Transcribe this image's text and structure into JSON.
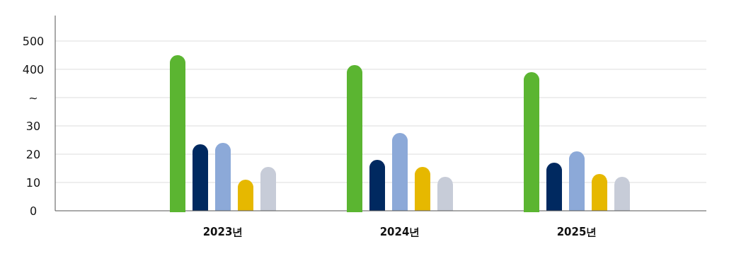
{
  "chart_data": [
    {
      "type": "bar",
      "categories": [
        null,
        null,
        null
      ],
      "series": [
        {
          "color": "#5bb531",
          "values": [
            450,
            415,
            390
          ]
        }
      ],
      "ylim": [
        275,
        590
      ],
      "yticks": [
        400,
        500
      ],
      "ref_lines": [
        {
          "axis": "y",
          "value": 300,
          "label": "~",
          "color": "#dddddd"
        }
      ],
      "grid": "y",
      "tick_labels": "y"
    },
    {
      "type": "bar",
      "categories": [
        "2023년",
        "2024년",
        "2025년"
      ],
      "series": [
        {
          "values": [
            null,
            null,
            null
          ]
        },
        {
          "color": "#002960",
          "values": [
            23.5,
            18,
            17
          ]
        },
        {
          "color": "#8ca9d8",
          "values": [
            24,
            27.5,
            21
          ]
        },
        {
          "color": "#e6b800",
          "values": [
            11,
            15.5,
            13
          ]
        },
        {
          "color": "#c7ccd8",
          "values": [
            15.5,
            12,
            12
          ]
        }
      ],
      "ylim": [
        0,
        37.5
      ],
      "yticks": [
        0,
        10,
        20,
        30
      ],
      "grid": "y"
    }
  ]
}
